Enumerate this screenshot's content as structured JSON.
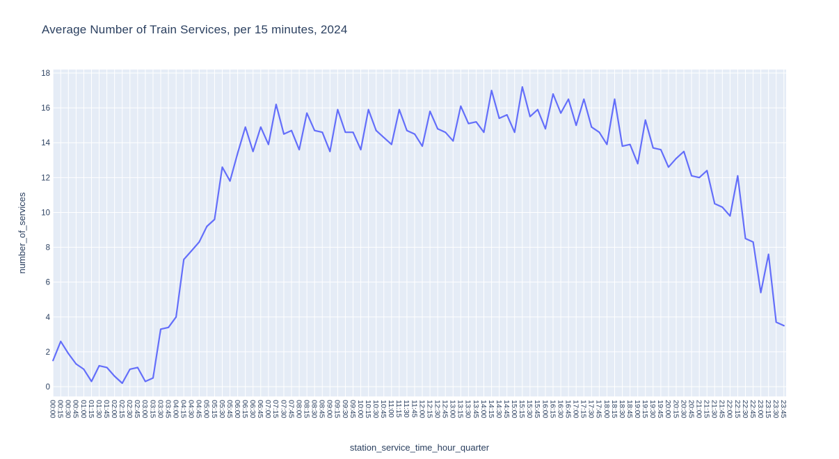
{
  "page": {
    "background_color": "#ffffff"
  },
  "chart_data": {
    "type": "line",
    "title": "Average Number of Train Services, per 15 minutes, 2024",
    "xlabel": "station_service_time_hour_quarter",
    "ylabel": "number_of_services",
    "legend_shown": false,
    "grid": true,
    "ylim": [
      0,
      18
    ],
    "yticks": [
      0,
      2,
      4,
      6,
      8,
      10,
      12,
      14,
      16,
      18
    ],
    "line_color": "#636efa",
    "plot_bg_color": "#e5ecf6",
    "grid_color": "#ffffff",
    "text_color": "#2a3f5f",
    "x": [
      "00:00",
      "00:15",
      "00:30",
      "00:45",
      "01:00",
      "01:15",
      "01:30",
      "01:45",
      "02:00",
      "02:15",
      "02:30",
      "02:45",
      "03:00",
      "03:15",
      "03:30",
      "03:45",
      "04:00",
      "04:15",
      "04:30",
      "04:45",
      "05:00",
      "05:15",
      "05:30",
      "05:45",
      "06:00",
      "06:15",
      "06:30",
      "06:45",
      "07:00",
      "07:15",
      "07:30",
      "07:45",
      "08:00",
      "08:15",
      "08:30",
      "08:45",
      "09:00",
      "09:15",
      "09:30",
      "09:45",
      "10:00",
      "10:15",
      "10:30",
      "10:45",
      "11:00",
      "11:15",
      "11:30",
      "11:45",
      "12:00",
      "12:15",
      "12:30",
      "12:45",
      "13:00",
      "13:15",
      "13:30",
      "13:45",
      "14:00",
      "14:15",
      "14:30",
      "14:45",
      "15:00",
      "15:15",
      "15:30",
      "15:45",
      "16:00",
      "16:15",
      "16:30",
      "16:45",
      "17:00",
      "17:15",
      "17:30",
      "17:45",
      "18:00",
      "18:15",
      "18:30",
      "18:45",
      "19:00",
      "19:15",
      "19:30",
      "19:45",
      "20:00",
      "20:15",
      "20:30",
      "20:45",
      "21:00",
      "21:15",
      "21:30",
      "21:45",
      "22:00",
      "22:15",
      "22:30",
      "22:45",
      "23:00",
      "23:15",
      "23:30",
      "23:45"
    ],
    "values": [
      1.5,
      2.6,
      1.9,
      1.3,
      1.0,
      0.3,
      1.2,
      1.1,
      0.6,
      0.2,
      1.0,
      1.1,
      0.3,
      0.5,
      3.3,
      3.4,
      4.0,
      7.3,
      7.8,
      8.3,
      9.2,
      9.6,
      12.6,
      11.8,
      13.4,
      14.9,
      13.5,
      14.9,
      13.9,
      16.2,
      14.5,
      14.7,
      13.6,
      15.7,
      14.7,
      14.6,
      13.5,
      15.9,
      14.6,
      14.6,
      13.6,
      15.9,
      14.7,
      14.3,
      13.9,
      15.9,
      14.7,
      14.5,
      13.8,
      15.8,
      14.8,
      14.6,
      14.1,
      16.1,
      15.1,
      15.2,
      14.6,
      17.0,
      15.4,
      15.6,
      14.6,
      17.2,
      15.5,
      15.9,
      14.8,
      16.8,
      15.7,
      16.5,
      15.0,
      16.5,
      14.9,
      14.6,
      13.9,
      16.5,
      13.8,
      13.9,
      12.8,
      15.3,
      13.7,
      13.6,
      12.6,
      13.1,
      13.5,
      12.1,
      12.0,
      12.4,
      10.5,
      10.3,
      9.8,
      12.1,
      8.5,
      8.3,
      5.4,
      7.6,
      3.7,
      3.5
    ]
  }
}
